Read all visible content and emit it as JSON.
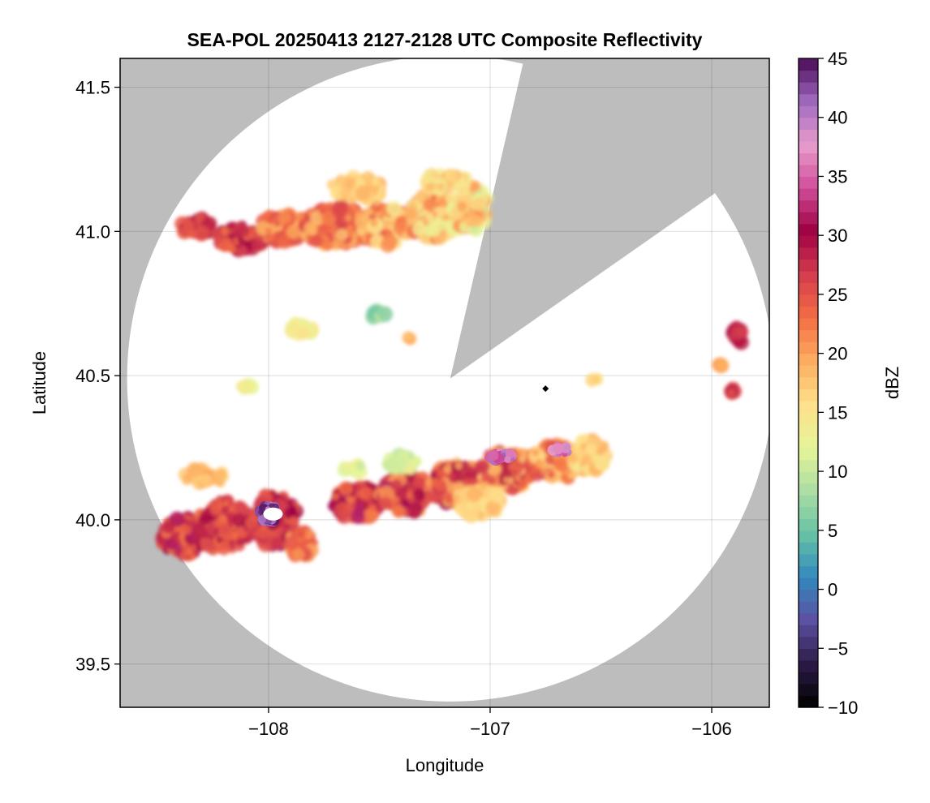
{
  "chart_data": {
    "type": "heatmap",
    "title": "SEA-POL 20250413 2127-2128 UTC Composite Reflectivity",
    "xlabel": "Longitude",
    "ylabel": "Latitude",
    "xlim": [
      -108.67,
      -105.74
    ],
    "ylim": [
      39.35,
      41.6
    ],
    "xticks": [
      -108,
      -107,
      -106
    ],
    "xtick_labels": [
      "−108",
      "−107",
      "−106"
    ],
    "yticks": [
      39.5,
      40.0,
      40.5,
      41.0,
      41.5
    ],
    "ytick_labels": [
      "39.5",
      "40.0",
      "40.5",
      "41.0",
      "41.5"
    ],
    "grid": true,
    "missing_color": "#bdbdbd",
    "colorbar": {
      "label": "dBZ",
      "range": [
        -10,
        45
      ],
      "ticks": [
        -10,
        -5,
        0,
        5,
        10,
        15,
        20,
        25,
        30,
        35,
        40,
        45
      ],
      "tick_labels": [
        "−10",
        "−5",
        "0",
        "5",
        "10",
        "15",
        "20",
        "25",
        "30",
        "35",
        "40",
        "45"
      ],
      "colormap": "Spectral_r",
      "levels": 55
    },
    "radar": {
      "center_lon": -107.18,
      "center_lat": 40.49,
      "range_deg_lat": 1.12,
      "blocked_sectors_deg_from_north": [
        [
          13,
          55
        ]
      ]
    },
    "echo_regions": [
      {
        "name": "northern band",
        "lon": [
          -108.4,
          -107.0
        ],
        "lat": [
          40.85,
          41.2
        ],
        "dbz_range": [
          12,
          30
        ]
      },
      {
        "name": "southern band west cell",
        "lon": [
          -108.45,
          -107.75
        ],
        "lat": [
          39.85,
          40.15
        ],
        "dbz_range": [
          15,
          45
        ]
      },
      {
        "name": "southern band east",
        "lon": [
          -107.75,
          -106.45
        ],
        "lat": [
          39.95,
          40.32
        ],
        "dbz_range": [
          5,
          40
        ]
      },
      {
        "name": "scattered cells east",
        "lon": [
          -105.95,
          -105.85
        ],
        "lat": [
          40.45,
          40.66
        ],
        "dbz_range": [
          20,
          30
        ]
      }
    ]
  }
}
